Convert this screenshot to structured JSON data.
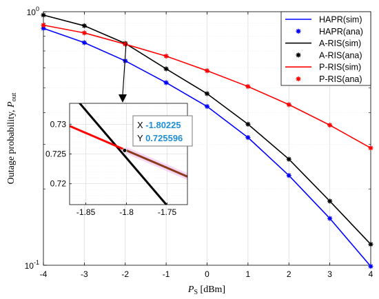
{
  "chart_data": {
    "type": "line",
    "y_scale": "log",
    "xlabel": "P_S [dBm]",
    "xlabel_main": "P",
    "xlabel_sub": "S",
    "xlabel_unit": "[dBm]",
    "ylabel": "Outage probability, P_out",
    "ylabel_main": "Outage probability, ",
    "ylabel_var": "P",
    "ylabel_sub": "out",
    "xlim": [
      -4,
      4
    ],
    "ylim": [
      0.1,
      1
    ],
    "x": [
      -4,
      -3,
      -2,
      -1,
      0,
      1,
      2,
      3,
      4
    ],
    "xtick_labels": [
      "-4",
      "-3",
      "-2",
      "-1",
      "0",
      "1",
      "2",
      "3",
      "4"
    ],
    "ytick_labels": [
      {
        "base": "10",
        "exp": "-1",
        "value": 0.1
      },
      {
        "base": "10",
        "exp": "0",
        "value": 1
      }
    ],
    "grid": true,
    "legend_position": "top-right",
    "series": [
      {
        "name": "HAPR(sim)",
        "color": "#0000ff",
        "style": "line",
        "values": [
          0.86,
          0.755,
          0.64,
          0.525,
          0.423,
          0.319,
          0.226,
          0.153,
          0.099
        ]
      },
      {
        "name": "HAPR(ana)",
        "color": "#0000ff",
        "style": "markers",
        "values": [
          0.86,
          0.755,
          0.64,
          0.525,
          0.423,
          0.319,
          0.226,
          0.153,
          0.099
        ]
      },
      {
        "name": "A-RIS(sim)",
        "color": "#000000",
        "style": "line",
        "values": [
          0.97,
          0.88,
          0.75,
          0.595,
          0.475,
          0.36,
          0.262,
          0.179,
          0.121
        ]
      },
      {
        "name": "A-RIS(ana)",
        "color": "#000000",
        "style": "markers",
        "values": [
          0.97,
          0.88,
          0.75,
          0.595,
          0.475,
          0.36,
          0.262,
          0.179,
          0.121
        ]
      },
      {
        "name": "P-RIS(sim)",
        "color": "#ff0000",
        "style": "line",
        "values": [
          0.885,
          0.825,
          0.745,
          0.668,
          0.585,
          0.507,
          0.43,
          0.357,
          0.29
        ]
      },
      {
        "name": "P-RIS(ana)",
        "color": "#ff0000",
        "style": "markers",
        "values": [
          0.885,
          0.825,
          0.745,
          0.668,
          0.585,
          0.507,
          0.43,
          0.357,
          0.29
        ]
      }
    ],
    "inset": {
      "xlim": [
        -1.87,
        -1.725
      ],
      "ylim": [
        0.7165,
        0.7335
      ],
      "xtick_labels": [
        "-1.85",
        "-1.8",
        "-1.75"
      ],
      "xtick_values": [
        -1.85,
        -1.8,
        -1.75
      ],
      "ytick_labels": [
        "0.72",
        "0.725",
        "0.73"
      ],
      "ytick_values": [
        0.72,
        0.725,
        0.73
      ],
      "lines": [
        {
          "color": "#000000",
          "points": [
            [
              -1.87,
              0.7355
            ],
            [
              -1.751,
              0.7165
            ]
          ]
        },
        {
          "color": "#ff0000",
          "points": [
            [
              -1.87,
              0.7297
            ],
            [
              -1.8,
              0.725596
            ]
          ]
        },
        {
          "color": "#8b3a1a",
          "points": [
            [
              -1.8,
              0.725596
            ],
            [
              -1.725,
              0.7212
            ]
          ]
        }
      ],
      "datatip": {
        "x_label": "X",
        "x_value": "-1.80225",
        "y_label": "Y",
        "y_value": "0.725596",
        "point": [
          -1.80225,
          0.725596
        ]
      }
    }
  }
}
